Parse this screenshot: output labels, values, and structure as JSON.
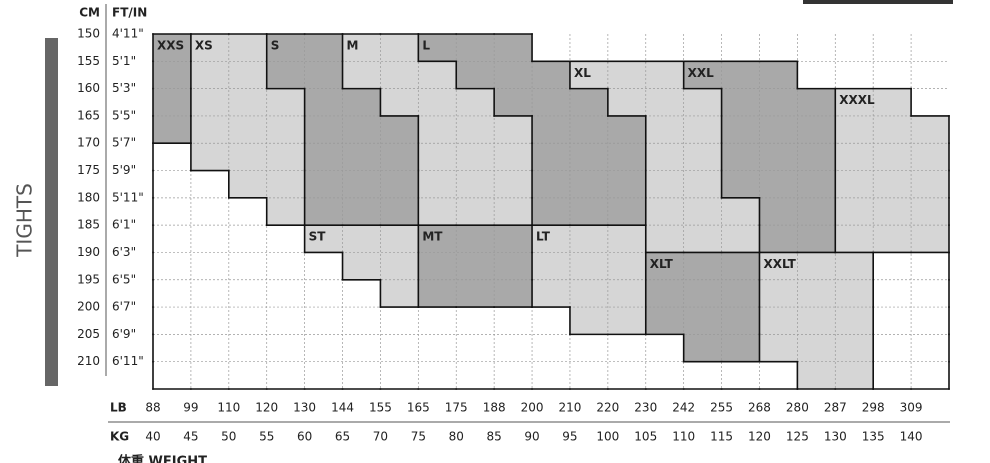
{
  "header": {
    "cm": "CM",
    "ft_in": "FT/IN",
    "lb": "LB",
    "kg": "KG",
    "side": "TIGHTS",
    "weight": "体重 WEIGHT"
  },
  "rows": {
    "cm": [
      150,
      155,
      160,
      165,
      170,
      175,
      180,
      185,
      190,
      195,
      200,
      205,
      210
    ],
    "ft_in": [
      "4'11\"",
      "5'1\"",
      "5'3\"",
      "5'5\"",
      "5'7\"",
      "5'9\"",
      "5'11\"",
      "6'1\"",
      "6'3\"",
      "6'5\"",
      "6'7\"",
      "6'9\"",
      "6'11\""
    ]
  },
  "columns": {
    "lb": [
      88,
      99,
      110,
      120,
      130,
      144,
      155,
      165,
      175,
      188,
      200,
      210,
      220,
      230,
      242,
      255,
      268,
      280,
      287,
      298,
      309
    ],
    "kg": [
      40,
      45,
      50,
      55,
      60,
      65,
      70,
      75,
      80,
      85,
      90,
      95,
      100,
      105,
      110,
      115,
      120,
      125,
      130,
      135,
      140
    ]
  },
  "sizes": [
    "XXS",
    "XS",
    "S",
    "M",
    "L",
    "XL",
    "XXL",
    "XXXL",
    "ST",
    "MT",
    "LT",
    "XLT",
    "XXLT"
  ]
}
